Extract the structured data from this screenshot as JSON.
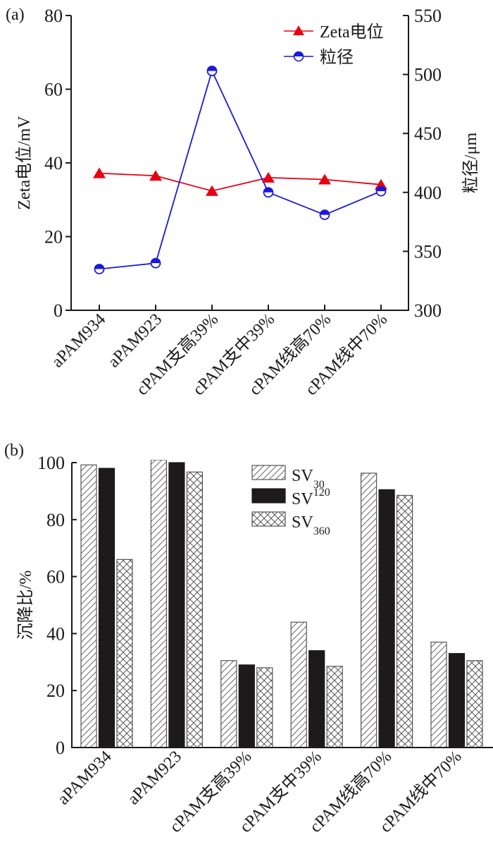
{
  "chart_data": [
    {
      "type": "line",
      "panel_label": "(a)",
      "categories": [
        "aPAM934",
        "aPAM923",
        "cPAM支高39%",
        "cPAM支中39%",
        "cPAM线高70%",
        "cPAM线中70%"
      ],
      "series": [
        {
          "name": "Zeta电位",
          "axis": "left",
          "marker": "filled-triangle",
          "color": "#e60012",
          "values": [
            37.2,
            36.5,
            32.4,
            36.0,
            35.5,
            34.1
          ]
        },
        {
          "name": "粒径",
          "axis": "right",
          "marker": "half-filled-circle",
          "color": "#1a1adc",
          "values": [
            335,
            340,
            503,
            400,
            381,
            401
          ]
        }
      ],
      "title": "",
      "xlabel": "",
      "ylabel": "Zeta电位/mV",
      "y2label": "粒径/μm",
      "ylim": [
        0,
        80
      ],
      "yticks": [
        0,
        20,
        40,
        60,
        80
      ],
      "y2lim": [
        300,
        550
      ],
      "y2ticks": [
        300,
        350,
        400,
        450,
        500,
        550
      ],
      "grid": false,
      "legend_position": "top-right"
    },
    {
      "type": "bar",
      "panel_label": "(b)",
      "categories": [
        "aPAM934",
        "aPAM923",
        "cPAM支高39%",
        "cPAM支中39%",
        "cPAM线高70%",
        "cPAM线中70%"
      ],
      "series": [
        {
          "name": "SV",
          "subscript": "30",
          "pattern": "diagonal-hatch",
          "values": [
            99.2,
            101,
            30.5,
            44,
            96.3,
            37
          ]
        },
        {
          "name": "SV",
          "subscript": "120",
          "pattern": "solid-black",
          "values": [
            98,
            100,
            29,
            34,
            90.5,
            33
          ]
        },
        {
          "name": "SV",
          "subscript": "360",
          "pattern": "cross-hatch",
          "values": [
            66,
            96.7,
            28,
            28.5,
            88.5,
            30.5
          ]
        }
      ],
      "title": "",
      "xlabel": "",
      "ylabel": "沉降比/%",
      "ylim": [
        0,
        100
      ],
      "yticks": [
        0,
        20,
        40,
        60,
        80,
        100
      ],
      "grid": false,
      "legend_position": "top-right"
    }
  ]
}
